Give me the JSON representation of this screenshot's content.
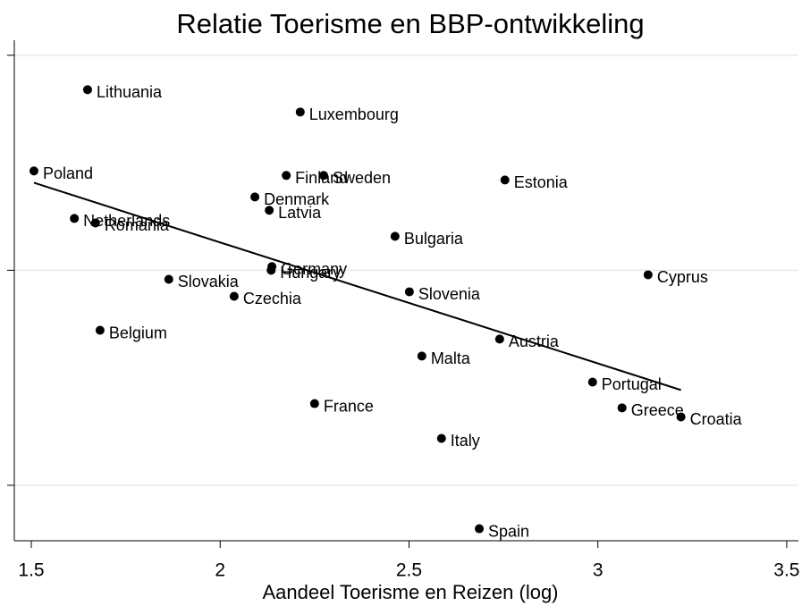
{
  "chart_data": {
    "type": "scatter",
    "title": "Relatie Toerisme en BBP-ontwikkeling",
    "xlabel": "Aandeel Toerisme en Reizen (log)",
    "point_labels": [
      "Lithuania",
      "Luxembourg",
      "Poland",
      "Finland",
      "Sweden",
      "Estonia",
      "Denmark",
      "Latvia",
      "Netherlands",
      "Romania",
      "Bulgaria",
      "Germany",
      "Hungary",
      "Cyprus",
      "Slovakia",
      "Slovenia",
      "Czechia",
      "Belgium",
      "Austria",
      "Malta",
      "Portugal",
      "France",
      "Greece",
      "Croatia",
      "Italy",
      "Spain"
    ],
    "x": [
      1.649,
      2.212,
      1.507,
      2.175,
      2.274,
      2.754,
      2.092,
      2.13,
      1.614,
      1.67,
      2.463,
      2.137,
      2.135,
      3.133,
      1.864,
      2.501,
      2.037,
      1.682,
      2.74,
      2.534,
      2.986,
      2.25,
      3.064,
      3.22,
      2.586,
      2.686
    ],
    "values": [
      0.84,
      0.736,
      0.462,
      0.441,
      0.441,
      0.42,
      0.341,
      0.279,
      0.241,
      0.22,
      0.158,
      0.017,
      0.0,
      -0.021,
      -0.042,
      -0.1,
      -0.121,
      -0.279,
      -0.32,
      -0.399,
      -0.52,
      -0.62,
      -0.64,
      -0.682,
      -0.782,
      -1.202
    ],
    "color": "#000000",
    "fit_line": {
      "x": [
        1.507,
        3.22
      ],
      "values": [
        0.407,
        -0.557
      ]
    },
    "xlim": [
      1.455,
      3.531
    ],
    "ylim": [
      -1.258,
      1.07
    ],
    "xticks": [
      1.5,
      2,
      2.5,
      3,
      3.5
    ],
    "yticks": [
      -1,
      0,
      1
    ],
    "grid": true
  }
}
